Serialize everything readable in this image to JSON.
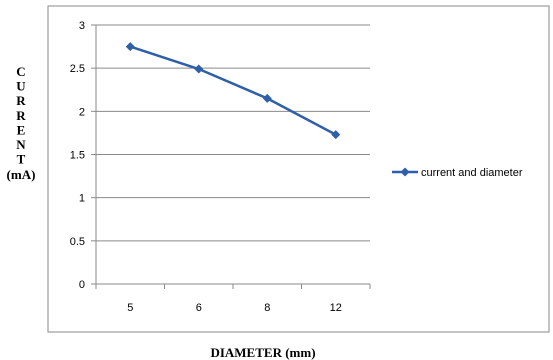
{
  "chart_data": {
    "type": "line",
    "categories": [
      "5",
      "6",
      "8",
      "12"
    ],
    "series": [
      {
        "name": "current and diameter",
        "values": [
          2.75,
          2.49,
          2.15,
          1.73
        ],
        "color": "#2E5FA8",
        "marker": "diamond"
      }
    ],
    "xlabel": "DIAMETER (mm)",
    "ylabel_letters": [
      "C",
      "U",
      "R",
      "R",
      "E",
      "N",
      "T"
    ],
    "ylabel_unit": "(mA)",
    "ylim": [
      0,
      3
    ],
    "yticks": [
      "0",
      "0.5",
      "1",
      "1.5",
      "2",
      "2.5",
      "3"
    ],
    "grid": true,
    "legend_position": "right"
  }
}
